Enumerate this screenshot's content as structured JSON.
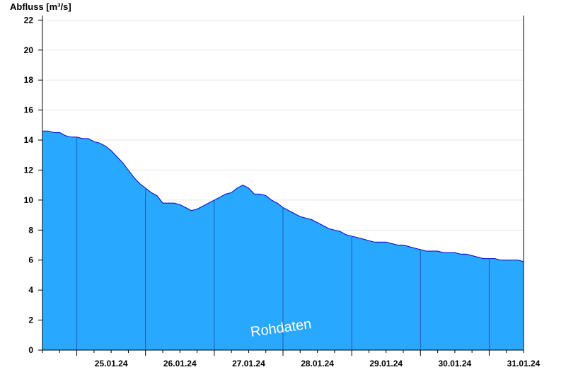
{
  "chart_data": {
    "type": "area",
    "ylabel": "Abfluss [m³/s]",
    "ylim": [
      0,
      22.3
    ],
    "yticks": [
      0,
      2,
      4,
      6,
      8,
      10,
      12,
      14,
      16,
      18,
      20,
      22
    ],
    "xlim": [
      "24.01.24 12:00",
      "31.01.24 12:00"
    ],
    "xtick_labels": [
      "25.01.24",
      "26.01.24",
      "27.01.24",
      "28.01.24",
      "29.01.24",
      "30.01.24",
      "31.01.24"
    ],
    "day_boundaries": [
      "25.01.24 00:00",
      "26.01.24 00:00",
      "27.01.24 00:00",
      "28.01.24 00:00",
      "29.01.24 00:00",
      "30.01.24 00:00",
      "31.01.24 00:00"
    ],
    "grid": true,
    "watermark": "Rohdaten",
    "fill_color": "#29a8ff",
    "line_color": "#0000cc",
    "series": [
      {
        "x_hours_from_start": [
          0,
          2,
          4,
          6,
          8,
          10,
          12,
          14,
          16,
          18,
          20,
          22,
          24,
          26,
          28,
          30,
          32,
          34,
          36,
          38,
          40,
          42,
          44,
          46,
          48,
          50,
          52,
          54,
          56,
          58,
          60,
          62,
          64,
          66,
          68,
          70,
          72,
          74,
          76,
          78,
          80,
          82,
          84,
          86,
          88,
          90,
          92,
          94,
          96,
          98,
          100,
          102,
          104,
          106,
          108,
          110,
          112,
          114,
          116,
          118,
          120,
          122,
          124,
          126,
          128,
          130,
          132,
          134,
          136,
          138,
          140,
          142,
          144,
          146,
          148,
          150,
          152,
          154,
          156,
          158,
          160,
          162,
          164,
          166,
          168
        ],
        "values": [
          14.6,
          14.6,
          14.5,
          14.5,
          14.3,
          14.2,
          14.2,
          14.1,
          14.1,
          13.9,
          13.8,
          13.6,
          13.3,
          12.9,
          12.5,
          12.0,
          11.5,
          11.1,
          10.8,
          10.5,
          10.3,
          9.8,
          9.8,
          9.8,
          9.7,
          9.5,
          9.3,
          9.4,
          9.6,
          9.8,
          10.0,
          10.2,
          10.4,
          10.5,
          10.8,
          11.0,
          10.8,
          10.4,
          10.4,
          10.3,
          10.0,
          9.8,
          9.5,
          9.3,
          9.1,
          8.9,
          8.8,
          8.7,
          8.5,
          8.3,
          8.1,
          8.0,
          7.9,
          7.7,
          7.6,
          7.5,
          7.4,
          7.3,
          7.2,
          7.2,
          7.2,
          7.1,
          7.0,
          7.0,
          6.9,
          6.8,
          6.7,
          6.6,
          6.6,
          6.6,
          6.5,
          6.5,
          6.5,
          6.4,
          6.4,
          6.3,
          6.2,
          6.1,
          6.1,
          6.1,
          6.0,
          6.0,
          6.0,
          6.0,
          5.9
        ]
      }
    ]
  }
}
